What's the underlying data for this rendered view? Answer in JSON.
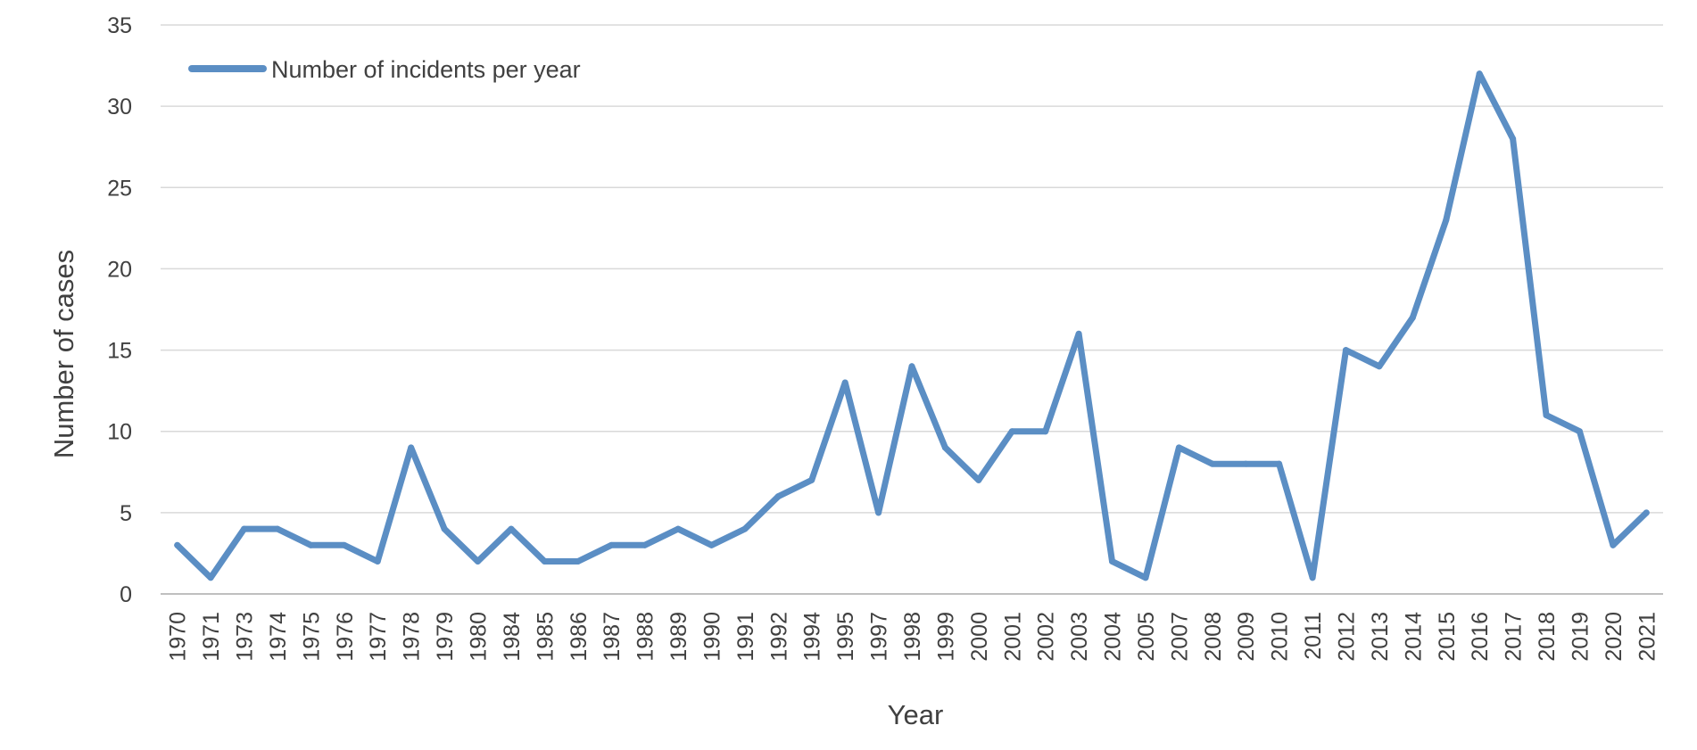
{
  "chart_data": {
    "type": "line",
    "title": "",
    "xlabel": "Year",
    "ylabel": "Number of cases",
    "ylim": [
      0,
      35
    ],
    "yticks": [
      0,
      5,
      10,
      15,
      20,
      25,
      30,
      35
    ],
    "grid": "horizontal",
    "legend_position": "top-left",
    "categories": [
      "1970",
      "1971",
      "1973",
      "1974",
      "1975",
      "1976",
      "1977",
      "1978",
      "1979",
      "1980",
      "1984",
      "1985",
      "1986",
      "1987",
      "1988",
      "1989",
      "1990",
      "1991",
      "1992",
      "1994",
      "1995",
      "1997",
      "1998",
      "1999",
      "2000",
      "2001",
      "2002",
      "2003",
      "2004",
      "2005",
      "2007",
      "2008",
      "2009",
      "2010",
      "2011",
      "2012",
      "2013",
      "2014",
      "2015",
      "2016",
      "2017",
      "2018",
      "2019",
      "2020",
      "2021"
    ],
    "series": [
      {
        "name": "Number of incidents per year",
        "color": "#5b8ec4",
        "values": [
          3,
          1,
          4,
          4,
          3,
          3,
          2,
          9,
          4,
          2,
          4,
          2,
          2,
          3,
          3,
          4,
          3,
          4,
          6,
          7,
          13,
          5,
          14,
          9,
          7,
          10,
          10,
          16,
          2,
          1,
          9,
          8,
          8,
          8,
          1,
          15,
          14,
          17,
          23,
          32,
          28,
          11,
          10,
          3,
          5
        ]
      }
    ]
  }
}
